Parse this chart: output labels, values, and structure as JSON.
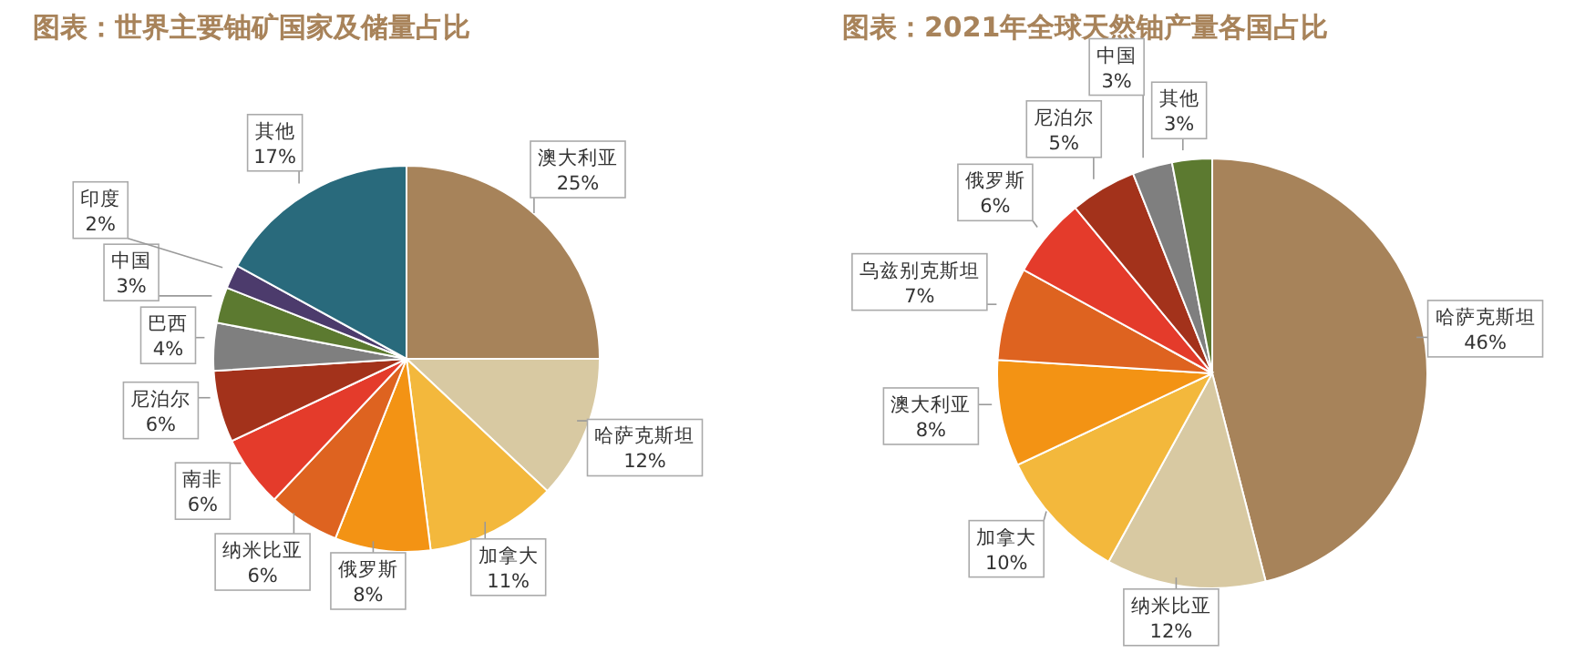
{
  "chart_data": [
    {
      "type": "pie",
      "title": "图表：世界主要铀矿国家及储量占比",
      "categories": [
        "澳大利亚",
        "哈萨克斯坦",
        "加拿大",
        "俄罗斯",
        "纳米比亚",
        "南非",
        "尼泊尔",
        "巴西",
        "中国",
        "印度",
        "其他"
      ],
      "values": [
        25,
        12,
        11,
        8,
        6,
        6,
        6,
        4,
        3,
        2,
        17
      ],
      "value_labels": [
        "25%",
        "12%",
        "11%",
        "8%",
        "6%",
        "6%",
        "6%",
        "4%",
        "3%",
        "2%",
        "17%"
      ],
      "colors": [
        "#a7835a",
        "#d8c9a2",
        "#f3b83c",
        "#f39314",
        "#de6320",
        "#e43b2b",
        "#a3321b",
        "#7f7f7f",
        "#5c7a30",
        "#4c3b6c",
        "#296a7c"
      ],
      "legend": false
    },
    {
      "type": "pie",
      "title": "图表：2021年全球天然铀产量各国占比",
      "categories": [
        "哈萨克斯坦",
        "纳米比亚",
        "加拿大",
        "澳大利亚",
        "乌兹别克斯坦",
        "俄罗斯",
        "尼泊尔",
        "中国",
        "其他"
      ],
      "values": [
        46,
        12,
        10,
        8,
        7,
        6,
        5,
        3,
        3
      ],
      "value_labels": [
        "46%",
        "12%",
        "10%",
        "8%",
        "7%",
        "6%",
        "5%",
        "3%",
        "3%"
      ],
      "colors": [
        "#a7835a",
        "#d8c9a2",
        "#f3b83c",
        "#f39314",
        "#de6320",
        "#e43b2b",
        "#a3321b",
        "#7f7f7f",
        "#5c7a30"
      ],
      "legend": false
    }
  ]
}
